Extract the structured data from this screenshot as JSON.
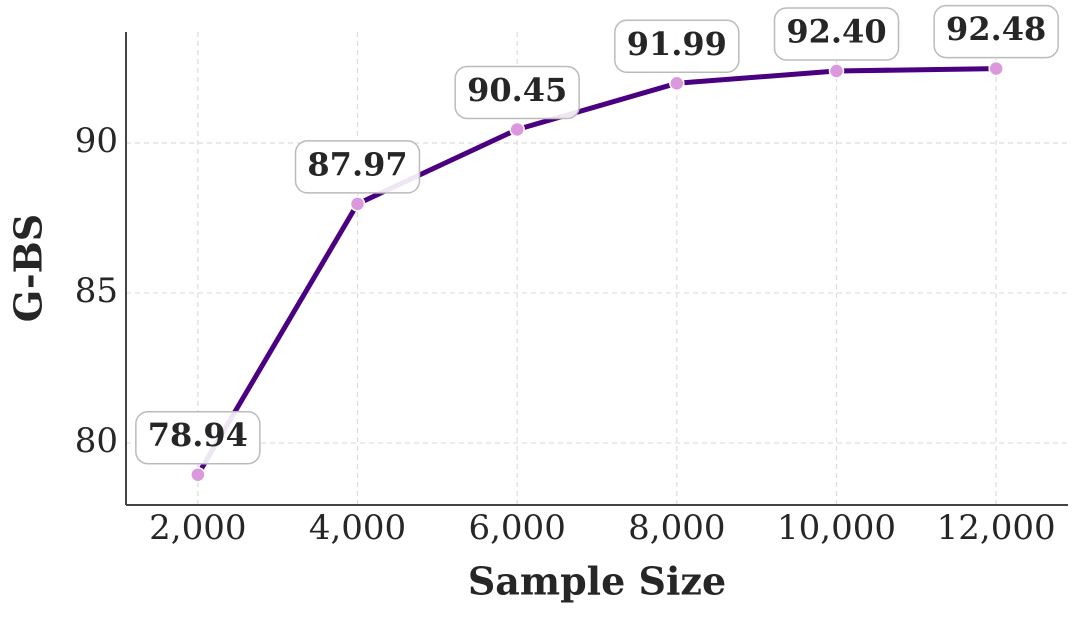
{
  "chart_data": {
    "type": "line",
    "x_label": "Sample Size",
    "y_label": "G-BS",
    "x": [
      2000,
      4000,
      6000,
      8000,
      10000,
      12000
    ],
    "values": [
      78.94,
      87.97,
      90.45,
      91.99,
      92.4,
      92.48
    ],
    "value_labels": [
      "78.94",
      "87.97",
      "90.45",
      "91.99",
      "92.40",
      "92.48"
    ],
    "color": "#4b0082",
    "marker_color": "#dc98dc",
    "xlim": [
      1100,
      12900
    ],
    "xticks": [
      {
        "value": 2000,
        "label": "2,000"
      },
      {
        "value": 4000,
        "label": "4,000"
      },
      {
        "value": 6000,
        "label": "6,000"
      },
      {
        "value": 8000,
        "label": "8,000"
      },
      {
        "value": 10000,
        "label": "10,000"
      },
      {
        "value": 12000,
        "label": "12,000"
      }
    ],
    "ylim": [
      77.93,
      93.7
    ],
    "yticks": [
      80,
      85,
      90
    ],
    "grid": true
  }
}
